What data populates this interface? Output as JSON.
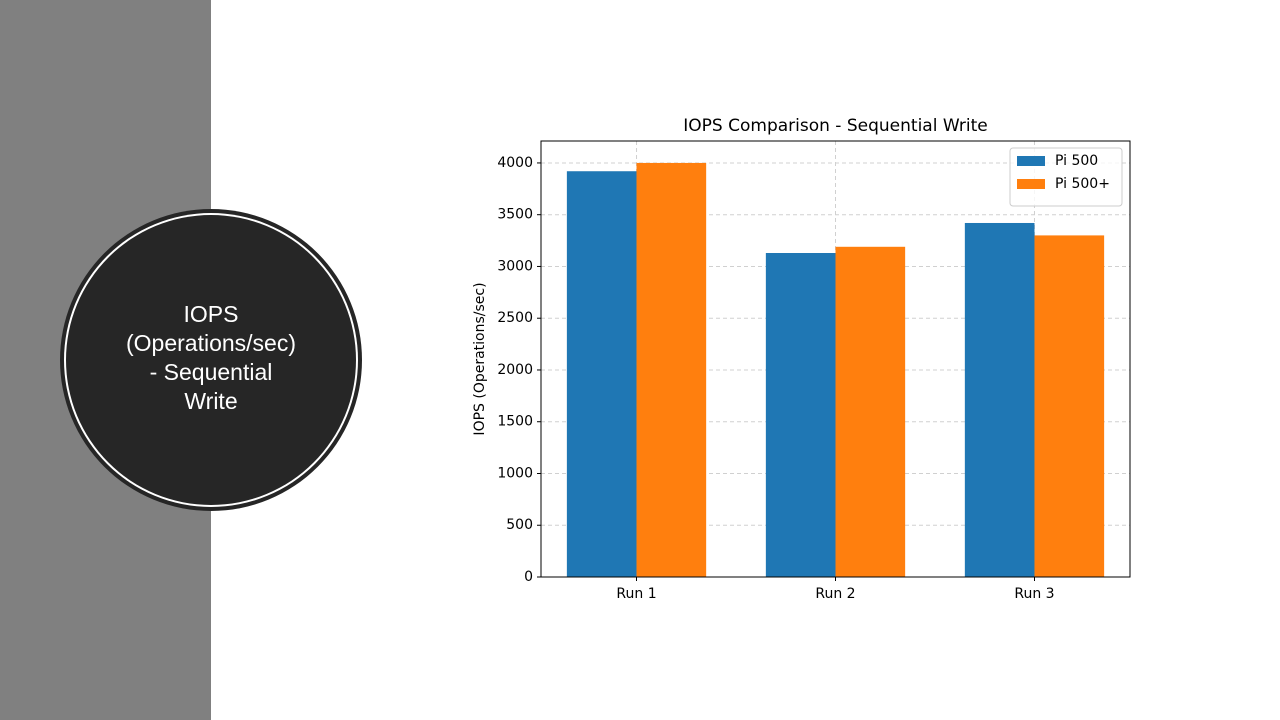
{
  "slide_title": [
    "IOPS",
    "(Operations/sec)",
    "- Sequential",
    "Write"
  ],
  "chart_data": {
    "type": "bar",
    "title": "IOPS Comparison - Sequential Write",
    "y_label": "IOPS (Operations/sec)",
    "categories": [
      "Run 1",
      "Run 2",
      "Run 3"
    ],
    "series": [
      {
        "name": "Pi 500",
        "color": "#1f77b4",
        "values": [
          3920,
          3130,
          3420
        ]
      },
      {
        "name": "Pi 500+",
        "color": "#ff7f0e",
        "values": [
          4000,
          3190,
          3300
        ]
      }
    ],
    "ylim": [
      0,
      4212
    ],
    "yticks": [
      0,
      500,
      1000,
      1500,
      2000,
      2500,
      3000,
      3500,
      4000
    ],
    "grid": true,
    "legend": "upper-right"
  }
}
